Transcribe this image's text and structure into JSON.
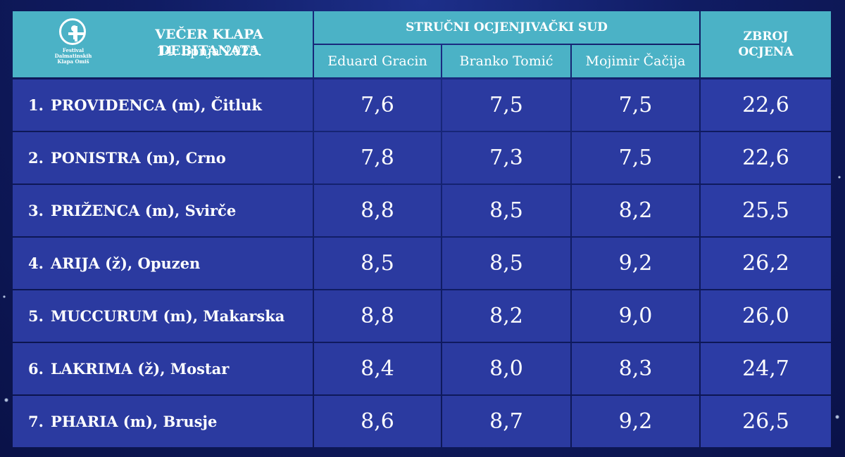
{
  "header": {
    "logo_text": "Festival Dalmatinskih Klapa Omiš",
    "event_title": "VEČER KLAPA DEBITANATA",
    "event_date": "14. lipnja 2025.",
    "jury_label": "STRUČNI OCJENJIVAČKI SUD",
    "judges": [
      "Eduard Gracin",
      "Branko Tomić",
      "Mojimir Čačija"
    ],
    "total_label_1": "ZBROJ",
    "total_label_2": "OCJENA"
  },
  "colors": {
    "header": "#4bb2c6",
    "row": "#2b3aa0",
    "background": "#101c63"
  },
  "chart_data": {
    "type": "table",
    "title": "VEČER KLAPA DEBITANATA",
    "subtitle": "14. lipnja 2025.",
    "columns": [
      "",
      "Eduard Gracin",
      "Branko Tomić",
      "Mojimir Čačija",
      "ZBROJ OCJENA"
    ],
    "rows": [
      {
        "rank": "1.",
        "name": "PROVIDENCA (m), Čitluk",
        "gracin": "7,6",
        "tomic": "7,5",
        "cacija": "7,5",
        "total": "22,6"
      },
      {
        "rank": "2.",
        "name": "PONISTRA (m), Crno",
        "gracin": "7,8",
        "tomic": "7,3",
        "cacija": "7,5",
        "total": "22,6"
      },
      {
        "rank": "3.",
        "name": "PRIŽENCA (m), Svirče",
        "gracin": "8,8",
        "tomic": "8,5",
        "cacija": "8,2",
        "total": "25,5"
      },
      {
        "rank": "4.",
        "name": "ARIJA (ž), Opuzen",
        "gracin": "8,5",
        "tomic": "8,5",
        "cacija": "9,2",
        "total": "26,2"
      },
      {
        "rank": "5.",
        "name": "MUCCURUM (m), Makarska",
        "gracin": "8,8",
        "tomic": "8,2",
        "cacija": "9,0",
        "total": "26,0"
      },
      {
        "rank": "6.",
        "name": "LAKRIMA (ž), Mostar",
        "gracin": "8,4",
        "tomic": "8,0",
        "cacija": "8,3",
        "total": "24,7"
      },
      {
        "rank": "7.",
        "name": "PHARIA (m), Brusje",
        "gracin": "8,6",
        "tomic": "8,7",
        "cacija": "9,2",
        "total": "26,5"
      }
    ]
  }
}
